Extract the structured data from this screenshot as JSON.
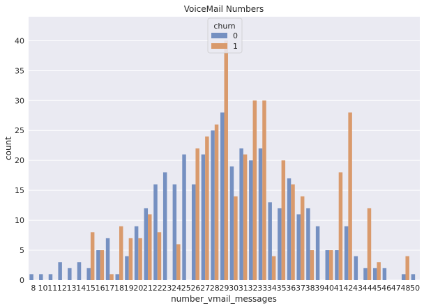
{
  "chart_data": {
    "type": "bar",
    "title": "VoiceMail Numbers",
    "xlabel": "number_vmail_messages",
    "ylabel": "count",
    "ylim": [
      0,
      44
    ],
    "yticks": [
      0,
      5,
      10,
      15,
      20,
      25,
      30,
      35,
      40
    ],
    "grid": true,
    "legend": {
      "title": "churn",
      "placement": "top-center"
    },
    "categories": [
      "8",
      "10",
      "11",
      "12",
      "13",
      "14",
      "15",
      "16",
      "17",
      "18",
      "19",
      "20",
      "21",
      "22",
      "23",
      "24",
      "25",
      "26",
      "27",
      "28",
      "29",
      "30",
      "31",
      "32",
      "33",
      "34",
      "35",
      "36",
      "37",
      "38",
      "39",
      "40",
      "41",
      "42",
      "43",
      "44",
      "45",
      "46",
      "47",
      "48",
      "50"
    ],
    "series": [
      {
        "name": "0",
        "color": "#7590C1",
        "values": [
          1,
          1,
          1,
          3,
          2,
          3,
          2,
          5,
          7,
          1,
          4,
          9,
          12,
          16,
          18,
          16,
          21,
          16,
          21,
          25,
          28,
          19,
          22,
          20,
          22,
          13,
          12,
          17,
          11,
          12,
          9,
          5,
          5,
          9,
          4,
          2,
          2,
          2,
          0,
          1,
          1
        ]
      },
      {
        "name": "1",
        "color": "#D99A6C",
        "values": [
          0,
          0,
          0,
          0,
          0,
          0,
          8,
          5,
          1,
          9,
          7,
          7,
          11,
          8,
          0,
          6,
          0,
          22,
          24,
          26,
          40,
          14,
          21,
          30,
          30,
          4,
          20,
          16,
          14,
          5,
          0,
          5,
          18,
          28,
          0,
          12,
          3,
          0,
          0,
          4,
          0
        ]
      }
    ]
  }
}
